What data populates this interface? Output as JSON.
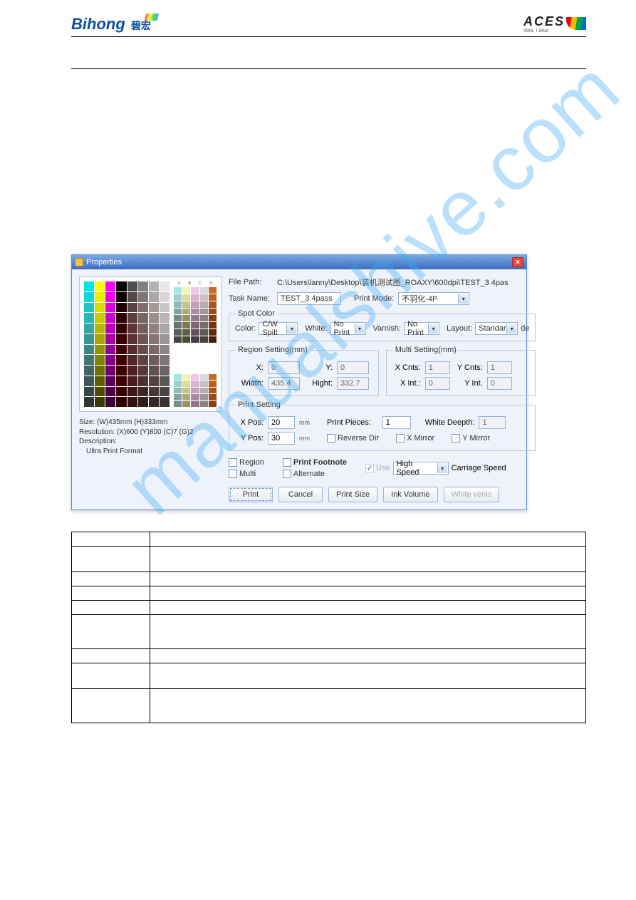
{
  "header": {
    "logo_left": "Bihong",
    "logo_left_cn": "碧宏",
    "logo_right": "ACES",
    "logo_right_tag": "Idea, I deal"
  },
  "watermark": "manualshive.com",
  "dialog": {
    "title": "Properties",
    "close_label": "×",
    "file_path_label": "File Path:",
    "file_path": "C:\\Users\\lanny\\Desktop\\装机测试图_ROAXY\\600dpi\\TEST_3 4pas",
    "task_name_label": "Task Name:",
    "task_name": "TEST_3 4pass",
    "print_mode_label": "Print Mode:",
    "print_mode": "不羽化-4P",
    "spot_color": {
      "legend": "Spot Color",
      "color_label": "Color:",
      "color_value": "C/W Spilt",
      "white_label": "White:",
      "white_value": "No Print",
      "varnish_label": "Varnish:",
      "varnish_value": "No Print",
      "layout_label": "Layout:",
      "layout_value": "Standard",
      "layout_suffix": "de"
    },
    "region": {
      "legend": "Region Setting(mm)",
      "x_label": "X:",
      "x_value": "0",
      "y_label": "Y:",
      "y_value": "0",
      "width_label": "Width:",
      "width_value": "435.4",
      "hight_label": "Hight:",
      "hight_value": "332.7"
    },
    "multi": {
      "legend": "Multi Setting(mm)",
      "xcnts_label": "X Cnts:",
      "xcnts_value": "1",
      "ycnts_label": "Y Cnts:",
      "ycnts_value": "1",
      "xint_label": "X Int.:",
      "xint_value": "0",
      "yint_label": "Y Int.",
      "yint_value": "0"
    },
    "print": {
      "legend": "Print Setting",
      "xpos_label": "X Pos:",
      "xpos_value": "20",
      "ypos_label": "Y Pos:",
      "ypos_value": "30",
      "mm": "mm",
      "pieces_label": "Print Pieces:",
      "pieces_value": "1",
      "white_depth_label": "White Deepth:",
      "white_depth_value": "1",
      "reverse_label": "Reverse Dir",
      "xmirror_label": "X Mirror",
      "ymirror_label": "Y Mirror"
    },
    "opts": {
      "region": "Region",
      "footnote": "Print Footnote",
      "multi": "Multi",
      "alternate": "Alternate",
      "use": "Use",
      "speed_value": "High Speed",
      "speed_suffix": "Carriage Speed"
    },
    "buttons": {
      "print": "Print",
      "cancel": "Cancel",
      "print_size": "Print Size",
      "ink_volume": "Ink Volume",
      "white_venis": "White venis"
    },
    "meta": {
      "size": "Size: (W)435mm (H)333mm",
      "res": "Resolution: (X)600  (Y)800 (C)7 (G)2",
      "desc_label": "Description:",
      "desc_value": "Ultra Print Format"
    },
    "grad_labels": [
      "A",
      "B",
      "C",
      "D"
    ]
  },
  "swatches": {
    "base_cols": [
      "#00e5e5",
      "#ffff00",
      "#ff00ff",
      "#000000",
      "#4d4d4d",
      "#808080",
      "#b3b3b3",
      "#e6e6e6"
    ],
    "rows": 12,
    "grad_cols": [
      "#a0e8e8",
      "#f5f3b0",
      "#f2c6e8",
      "#d9d9d9",
      "#c76b22"
    ],
    "grad_rows": 8
  },
  "table": {
    "rows": [
      {
        "h": "",
        "c": ""
      },
      {
        "h": "",
        "c": "",
        "cls": "med"
      },
      {
        "h": "",
        "c": ""
      },
      {
        "h": "",
        "c": ""
      },
      {
        "h": "",
        "c": ""
      },
      {
        "h": "",
        "c": "",
        "cls": "tall"
      },
      {
        "h": "",
        "c": ""
      },
      {
        "h": "",
        "c": "",
        "cls": "med"
      },
      {
        "h": "",
        "c": "",
        "cls": "tall"
      }
    ]
  }
}
